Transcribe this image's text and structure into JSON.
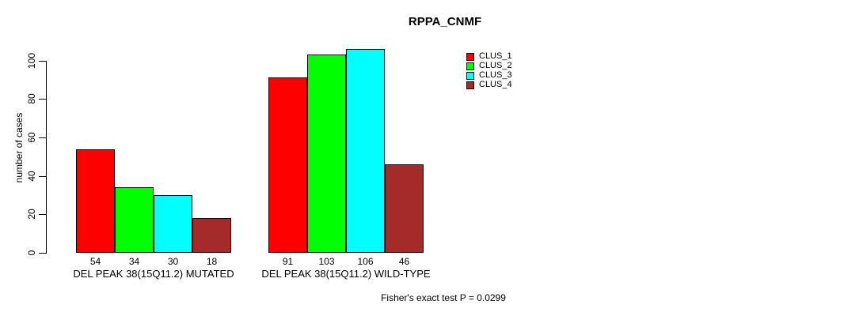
{
  "title": "RPPA_CNMF",
  "y_axis_title": "number of cases",
  "annotation": "Fisher's exact test P = 0.0299",
  "chart_data": {
    "type": "bar",
    "title": "RPPA_CNMF",
    "xlabel": "",
    "ylabel": "number of cases",
    "ylim": [
      0,
      110
    ],
    "yticks": [
      0,
      20,
      40,
      60,
      80,
      100
    ],
    "grid": false,
    "legend_position": "top-right",
    "bar_value_labels_shown": true,
    "categories": [
      "DEL PEAK 38(15Q11.2) MUTATED",
      "DEL PEAK 38(15Q11.2) WILD-TYPE"
    ],
    "series": [
      {
        "name": "CLUS_1",
        "color": "#ff0000",
        "values": [
          54,
          91
        ]
      },
      {
        "name": "CLUS_2",
        "color": "#00ff00",
        "values": [
          34,
          103
        ]
      },
      {
        "name": "CLUS_3",
        "color": "#00ffff",
        "values": [
          30,
          106
        ]
      },
      {
        "name": "CLUS_4",
        "color": "#a52a2a",
        "values": [
          18,
          46
        ]
      }
    ],
    "groups": [
      {
        "label": "DEL PEAK 38(15Q11.2) MUTATED",
        "values": [
          54,
          34,
          30,
          18
        ]
      },
      {
        "label": "DEL PEAK 38(15Q11.2) WILD-TYPE",
        "values": [
          91,
          103,
          106,
          46
        ]
      }
    ],
    "legend": [
      {
        "label": "CLUS_1",
        "color": "#ff0000"
      },
      {
        "label": "CLUS_2",
        "color": "#00ff00"
      },
      {
        "label": "CLUS_3",
        "color": "#00ffff"
      },
      {
        "label": "CLUS_4",
        "color": "#a52a2a"
      }
    ],
    "annotation": "Fisher's exact test P = 0.0299",
    "axis_color": "#000000",
    "bar_border_color": "#000000"
  }
}
